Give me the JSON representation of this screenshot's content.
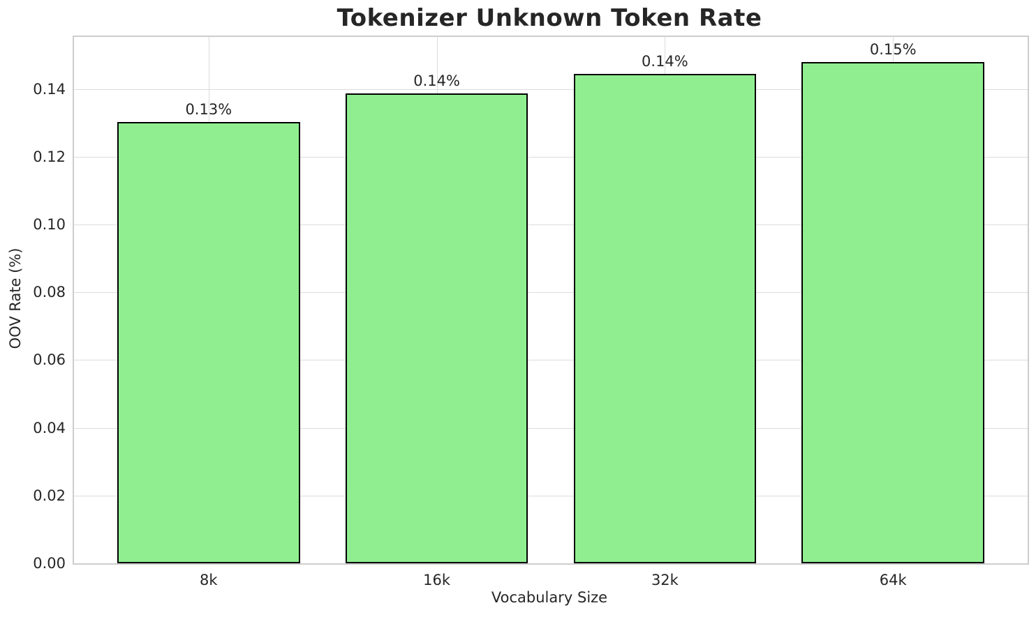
{
  "chart_data": {
    "type": "bar",
    "title": "Tokenizer Unknown Token Rate",
    "xlabel": "Vocabulary Size",
    "ylabel": "OOV Rate (%)",
    "categories": [
      "8k",
      "16k",
      "32k",
      "64k"
    ],
    "values": [
      0.1302,
      0.1387,
      0.1444,
      0.1479
    ],
    "value_labels": [
      "0.13%",
      "0.14%",
      "0.14%",
      "0.15%"
    ],
    "ylim": [
      0,
      0.1554
    ],
    "yticks": [
      {
        "value": 0.0,
        "label": "0.00"
      },
      {
        "value": 0.02,
        "label": "0.02"
      },
      {
        "value": 0.04,
        "label": "0.04"
      },
      {
        "value": 0.06,
        "label": "0.06"
      },
      {
        "value": 0.08,
        "label": "0.08"
      },
      {
        "value": 0.1,
        "label": "0.10"
      },
      {
        "value": 0.12,
        "label": "0.12"
      },
      {
        "value": 0.14,
        "label": "0.14"
      }
    ],
    "grid": true,
    "legend": "none",
    "bar_width_frac": 0.8,
    "colors": {
      "bar_fill": "#90EE90",
      "bar_edge": "#000000",
      "grid": "#dcdcdc",
      "spine": "#cdcdcd",
      "text": "#262626",
      "background": "#ffffff"
    }
  }
}
